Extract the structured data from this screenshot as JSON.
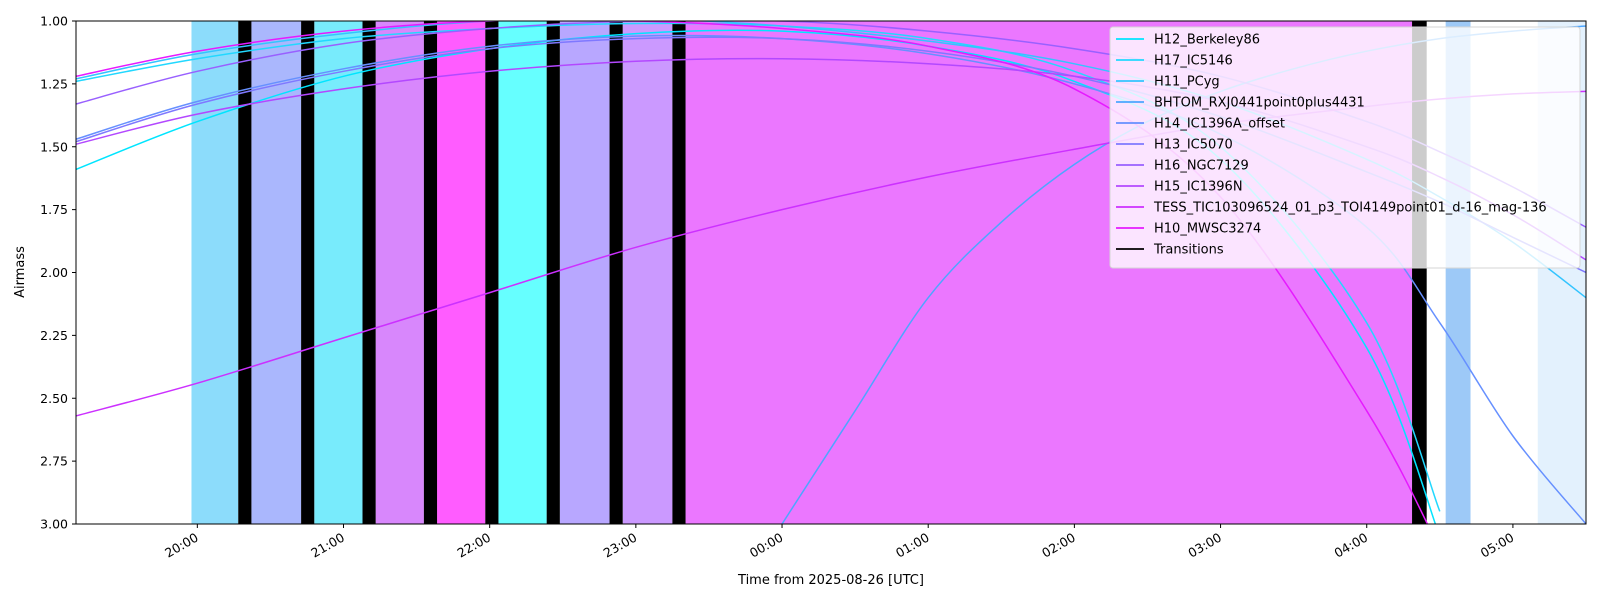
{
  "chart_data": {
    "type": "line",
    "xlabel": "Time from 2025-08-26 [UTC]",
    "ylabel": "Airmass",
    "x_unit": "hours UTC (hours past 24 fall on 2025-08-27)",
    "xlim": [
      19.17,
      29.5
    ],
    "ylim": [
      3.0,
      1.0
    ],
    "y_inverted": true,
    "yticks": [
      1.0,
      1.25,
      1.5,
      1.75,
      2.0,
      2.25,
      2.5,
      2.75,
      3.0
    ],
    "ytick_labels": [
      "1.00",
      "1.25",
      "1.50",
      "1.75",
      "2.00",
      "2.25",
      "2.50",
      "2.75",
      "3.00"
    ],
    "xticks": [
      20,
      21,
      22,
      23,
      24,
      25,
      26,
      27,
      28,
      29
    ],
    "xtick_labels": [
      "20:00",
      "21:00",
      "22:00",
      "23:00",
      "00:00",
      "01:00",
      "02:00",
      "03:00",
      "04:00",
      "05:00"
    ],
    "legend_position": "top-right",
    "grid": false,
    "series": [
      {
        "name": "H12_Berkeley86",
        "color": "#00e5ff",
        "x": [
          19.17,
          20,
          21,
          22,
          23,
          24,
          25,
          26,
          27,
          28,
          28.5,
          29,
          29.5
        ],
        "y": [
          1.59,
          1.4,
          1.22,
          1.11,
          1.05,
          1.04,
          1.1,
          1.24,
          1.55,
          2.3,
          3.05,
          null,
          null
        ]
      },
      {
        "name": "H17_IC5146",
        "color": "#22d8ff",
        "x": [
          19.17,
          20,
          21,
          22,
          23,
          24,
          25,
          26,
          27,
          28,
          28.5,
          29,
          29.5
        ],
        "y": [
          1.24,
          1.15,
          1.07,
          1.03,
          1.01,
          1.02,
          1.07,
          1.2,
          1.5,
          2.2,
          2.95,
          null,
          null
        ]
      },
      {
        "name": "H11_PCyg",
        "color": "#33c4ff",
        "x": [
          19.17,
          20,
          21,
          22,
          23,
          24,
          25,
          26,
          27,
          28,
          28.5,
          29,
          29.5
        ],
        "y": [
          1.23,
          1.13,
          1.05,
          1.0,
          0.99,
          1.02,
          1.08,
          1.17,
          1.32,
          1.55,
          1.7,
          1.88,
          2.1
        ]
      },
      {
        "name": "BHTOM_RXJ0441point0plus4431",
        "color": "#4da6ff",
        "x": [
          24.0,
          24.5,
          25,
          25.5,
          26,
          26.5,
          27,
          27.5,
          28,
          28.5,
          29,
          29.5
        ],
        "y": [
          3.0,
          2.55,
          2.1,
          1.8,
          1.57,
          1.4,
          1.28,
          1.19,
          1.12,
          1.07,
          1.04,
          1.02
        ]
      },
      {
        "name": "H14_IC1396A_offset",
        "color": "#6690ff",
        "x": [
          19.17,
          20,
          21,
          22,
          23,
          24,
          25,
          26,
          27,
          28,
          28.5,
          29,
          29.5
        ],
        "y": [
          1.47,
          1.32,
          1.19,
          1.1,
          1.06,
          1.07,
          1.13,
          1.25,
          1.45,
          1.82,
          2.2,
          2.65,
          3.0
        ]
      },
      {
        "name": "H13_IC5070",
        "color": "#7f78ff",
        "x": [
          19.17,
          20,
          21,
          22,
          23,
          24,
          25,
          26,
          27,
          28,
          28.5,
          29,
          29.5
        ],
        "y": [
          1.48,
          1.33,
          1.2,
          1.11,
          1.07,
          1.07,
          1.12,
          1.22,
          1.38,
          1.6,
          1.72,
          1.86,
          2.0
        ]
      },
      {
        "name": "H16_NGC7129",
        "color": "#9960ff",
        "x": [
          19.17,
          20,
          21,
          22,
          23,
          24,
          25,
          26,
          27,
          28,
          28.5,
          29,
          29.5
        ],
        "y": [
          1.33,
          1.2,
          1.09,
          1.03,
          1.0,
          1.0,
          1.04,
          1.11,
          1.22,
          1.4,
          1.52,
          1.66,
          1.82
        ]
      },
      {
        "name": "H15_IC1396N",
        "color": "#b348ff",
        "x": [
          19.17,
          20,
          21,
          22,
          23,
          24,
          25,
          26,
          27,
          28,
          28.5,
          29,
          29.5
        ],
        "y": [
          1.49,
          1.37,
          1.27,
          1.2,
          1.16,
          1.15,
          1.17,
          1.22,
          1.32,
          1.5,
          1.62,
          1.77,
          1.95
        ]
      },
      {
        "name": "TESS_TIC103096524_01_p3_TOI4149point01_d-16_mag-136",
        "color": "#cc30ff",
        "x": [
          19.17,
          20,
          21,
          22,
          23,
          24,
          25,
          26,
          27,
          28,
          28.5,
          29,
          29.5
        ],
        "y": [
          2.57,
          2.44,
          2.26,
          2.08,
          1.9,
          1.75,
          1.62,
          1.51,
          1.41,
          1.34,
          1.31,
          1.29,
          1.28
        ]
      },
      {
        "name": "H10_MWSC3274",
        "color": "#e61aff",
        "x": [
          19.17,
          20,
          21,
          22,
          23,
          24,
          25,
          26,
          27,
          28,
          28.5
        ],
        "y": [
          1.22,
          1.12,
          1.04,
          1.0,
          1.0,
          1.03,
          1.1,
          1.27,
          1.7,
          2.55,
          3.1
        ]
      }
    ],
    "observation_blocks": [
      {
        "start": 19.96,
        "end": 20.28,
        "color": "#8cdcfb"
      },
      {
        "start": 20.37,
        "end": 20.71,
        "color": "#aab7fd"
      },
      {
        "start": 20.8,
        "end": 21.13,
        "color": "#78ebfc"
      },
      {
        "start": 21.22,
        "end": 21.55,
        "color": "#d887fc"
      },
      {
        "start": 21.64,
        "end": 21.97,
        "color": "#ff5cff"
      },
      {
        "start": 22.06,
        "end": 22.39,
        "color": "#66ffff"
      },
      {
        "start": 22.48,
        "end": 22.82,
        "color": "#b8a7ff"
      },
      {
        "start": 22.91,
        "end": 23.25,
        "color": "#cb99ff"
      },
      {
        "start": 23.34,
        "end": 28.31,
        "color": "#eb77ff"
      },
      {
        "start": 28.31,
        "end": 28.41,
        "color": "#c8c8c8"
      },
      {
        "start": 28.54,
        "end": 28.71,
        "color": "#9dc9f7"
      },
      {
        "start": 29.17,
        "end": 29.5,
        "color": "#e3f1fd"
      }
    ],
    "transitions": [
      {
        "start": 20.28,
        "end": 20.37
      },
      {
        "start": 20.71,
        "end": 20.8
      },
      {
        "start": 21.13,
        "end": 21.22
      },
      {
        "start": 21.55,
        "end": 21.64
      },
      {
        "start": 21.97,
        "end": 22.06
      },
      {
        "start": 22.39,
        "end": 22.48
      },
      {
        "start": 22.82,
        "end": 22.91
      },
      {
        "start": 23.25,
        "end": 23.34
      },
      {
        "start": 28.31,
        "end": 28.41
      }
    ],
    "transition_legend": {
      "name": "Transitions",
      "color": "#000000"
    }
  }
}
